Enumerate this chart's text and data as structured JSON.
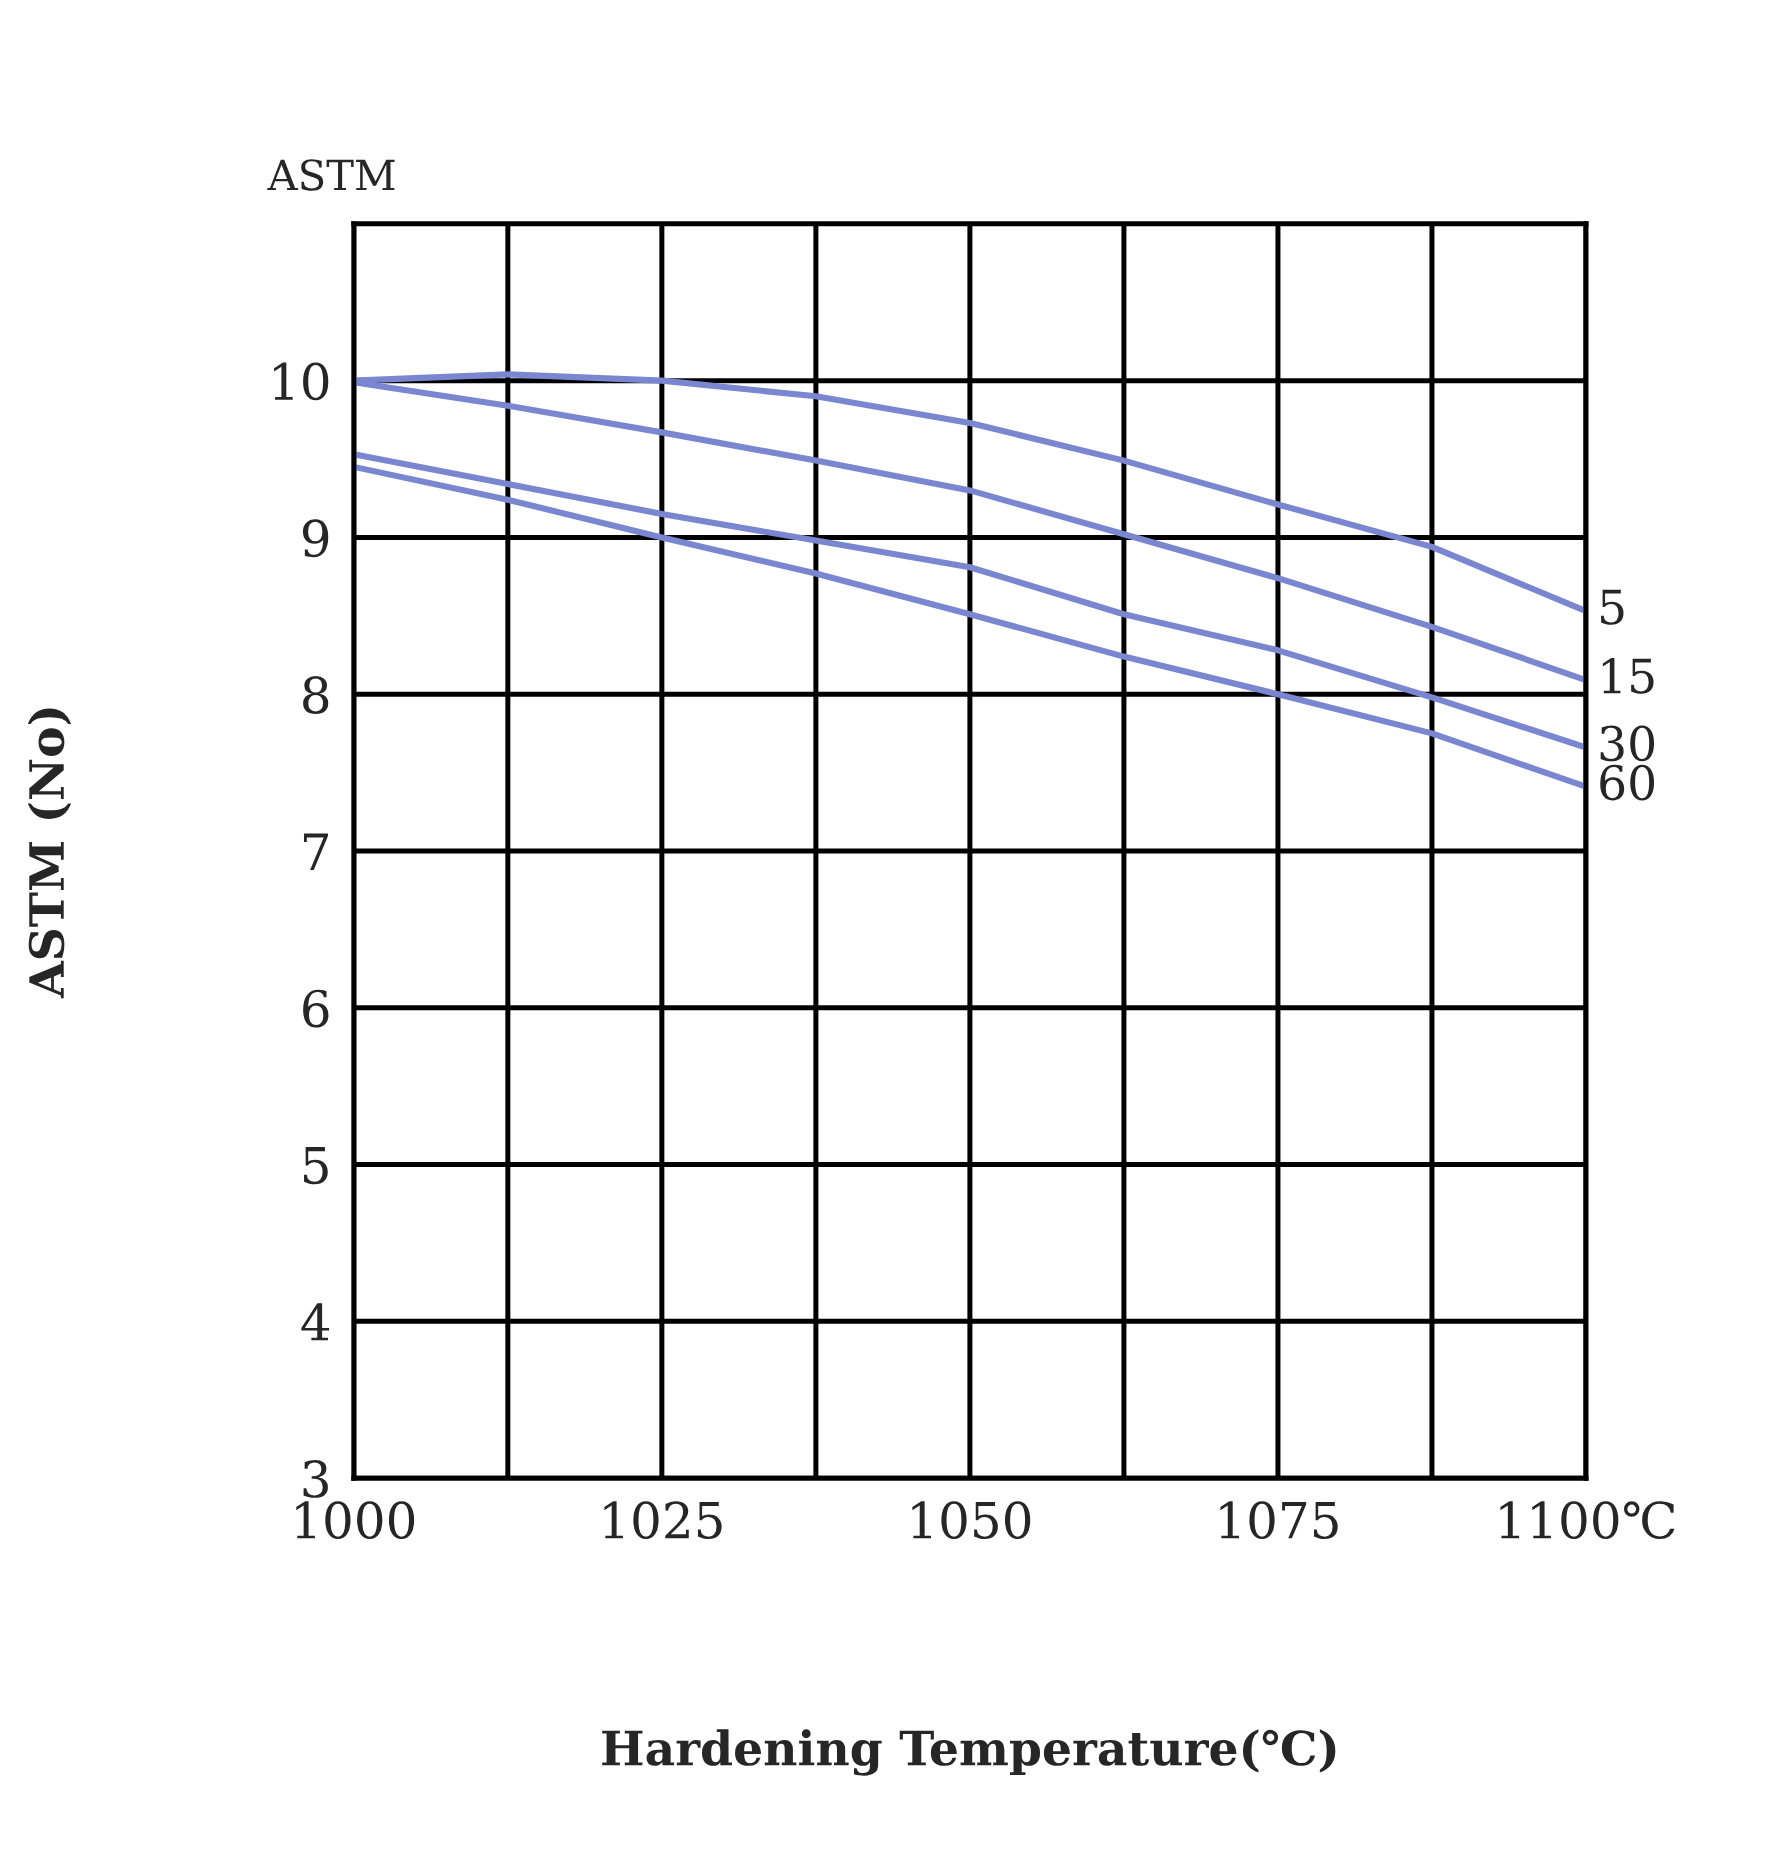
{
  "chart_data": {
    "type": "line",
    "xlabel": "Hardening Temperature(℃)",
    "ylabel": "ASTM (No)",
    "annotations": [
      "ASTM"
    ],
    "x": [
      1000,
      1012.5,
      1025,
      1037.5,
      1050,
      1062.5,
      1075,
      1087.5,
      1100
    ],
    "series": [
      {
        "name": "5",
        "color": "#7b86d0",
        "values": [
          10.0,
          10.04,
          10.0,
          9.9,
          9.73,
          9.49,
          9.21,
          8.94,
          8.53
        ]
      },
      {
        "name": "15",
        "color": "#7b86d0",
        "values": [
          9.99,
          9.84,
          9.67,
          9.49,
          9.3,
          9.02,
          8.74,
          8.43,
          8.09
        ]
      },
      {
        "name": "30",
        "color": "#7b86d0",
        "values": [
          9.53,
          9.34,
          9.15,
          8.98,
          8.81,
          8.51,
          8.28,
          7.98,
          7.66
        ]
      },
      {
        "name": "60",
        "color": "#7b86d0",
        "values": [
          9.45,
          9.24,
          9.0,
          8.77,
          8.51,
          8.24,
          8.0,
          7.75,
          7.41
        ]
      }
    ],
    "xlim": [
      1000,
      1100
    ],
    "xticks": [
      1000,
      {
        "value": 1012.5,
        "label": null
      },
      1025,
      {
        "value": 1037.5,
        "label": null
      },
      1050,
      {
        "value": 1062.5,
        "label": null
      },
      1075,
      {
        "value": 1087.5,
        "label": null
      },
      {
        "value": 1100,
        "label": "1100℃"
      }
    ],
    "ylim": [
      3,
      11
    ],
    "yticks": [
      3,
      4,
      5,
      6,
      7,
      8,
      9,
      10
    ],
    "grid": true,
    "legend": false,
    "marker": "none",
    "line_style": "solid"
  }
}
